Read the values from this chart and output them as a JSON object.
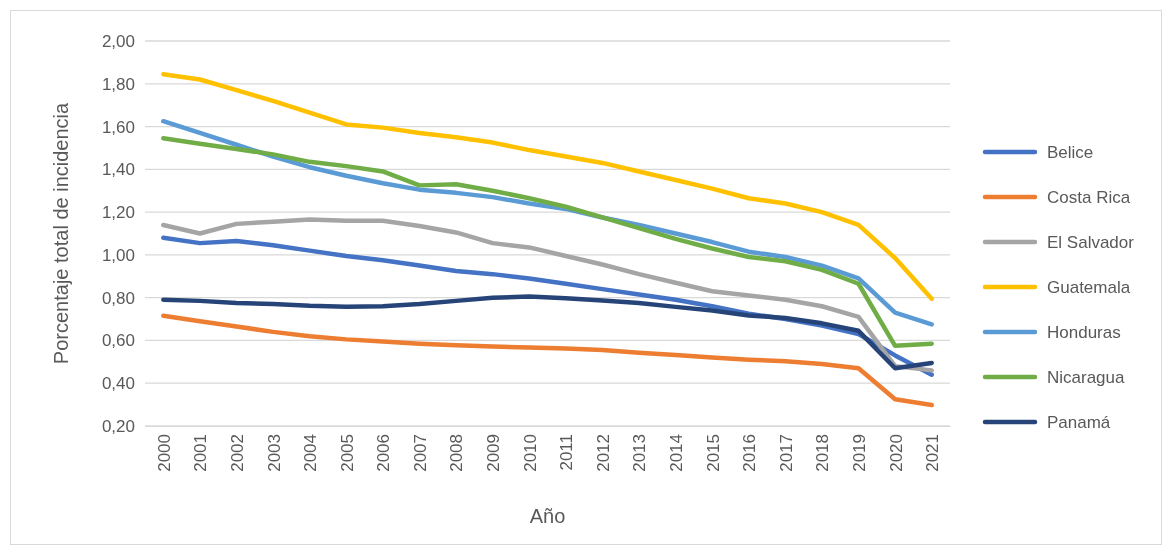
{
  "chart_data": {
    "type": "line",
    "xlabel": "Año",
    "ylabel": "Porcentaje total de incidencia",
    "categories": [
      "2000",
      "2001",
      "2002",
      "2003",
      "2004",
      "2005",
      "2006",
      "2007",
      "2008",
      "2009",
      "2010",
      "2011",
      "2012",
      "2013",
      "2014",
      "2015",
      "2016",
      "2017",
      "2018",
      "2019",
      "2020",
      "2021"
    ],
    "ylim": [
      0.2,
      2.0
    ],
    "yticks": [
      {
        "value": 0.2,
        "label": "0,20"
      },
      {
        "value": 0.4,
        "label": "0,40"
      },
      {
        "value": 0.6,
        "label": "0,60"
      },
      {
        "value": 0.8,
        "label": "0,80"
      },
      {
        "value": 1.0,
        "label": "1,00"
      },
      {
        "value": 1.2,
        "label": "1,20"
      },
      {
        "value": 1.4,
        "label": "1,40"
      },
      {
        "value": 1.6,
        "label": "1,60"
      },
      {
        "value": 1.8,
        "label": "1,80"
      },
      {
        "value": 2.0,
        "label": "2,00"
      }
    ],
    "grid": "y",
    "legend": "right",
    "marker": "none",
    "line_style": "solid",
    "series": [
      {
        "name": "Belice",
        "color": "#4472c4",
        "values": [
          1.08,
          1.055,
          1.065,
          1.045,
          1.02,
          0.995,
          0.975,
          0.95,
          0.925,
          0.91,
          0.89,
          0.865,
          0.84,
          0.815,
          0.79,
          0.76,
          0.725,
          0.7,
          0.67,
          0.63,
          0.53,
          0.44
        ]
      },
      {
        "name": "Costa Rica",
        "color": "#ed7d31",
        "values": [
          0.715,
          0.69,
          0.665,
          0.64,
          0.62,
          0.605,
          0.595,
          0.585,
          0.578,
          0.572,
          0.567,
          0.562,
          0.555,
          0.543,
          0.532,
          0.52,
          0.51,
          0.503,
          0.49,
          0.47,
          0.325,
          0.298
        ]
      },
      {
        "name": "El Salvador",
        "color": "#a5a5a5",
        "values": [
          1.14,
          1.1,
          1.145,
          1.155,
          1.165,
          1.16,
          1.16,
          1.135,
          1.105,
          1.055,
          1.035,
          0.995,
          0.955,
          0.91,
          0.87,
          0.83,
          0.81,
          0.79,
          0.76,
          0.71,
          0.48,
          0.46
        ]
      },
      {
        "name": "Guatemala",
        "color": "#ffc000",
        "values": [
          1.845,
          1.82,
          1.77,
          1.72,
          1.665,
          1.61,
          1.595,
          1.57,
          1.55,
          1.525,
          1.49,
          1.46,
          1.43,
          1.39,
          1.35,
          1.31,
          1.265,
          1.24,
          1.2,
          1.14,
          0.985,
          0.795
        ]
      },
      {
        "name": "Honduras",
        "color": "#5b9bd5",
        "values": [
          1.625,
          1.57,
          1.515,
          1.46,
          1.41,
          1.37,
          1.335,
          1.305,
          1.29,
          1.27,
          1.24,
          1.215,
          1.175,
          1.14,
          1.1,
          1.06,
          1.015,
          0.99,
          0.95,
          0.89,
          0.73,
          0.675
        ]
      },
      {
        "name": "Nicaragua",
        "color": "#70ad47",
        "values": [
          1.545,
          1.52,
          1.495,
          1.47,
          1.435,
          1.415,
          1.39,
          1.325,
          1.33,
          1.3,
          1.265,
          1.225,
          1.175,
          1.125,
          1.075,
          1.03,
          0.99,
          0.97,
          0.93,
          0.865,
          0.575,
          0.585
        ]
      },
      {
        "name": "Panamá",
        "color": "#264478",
        "values": [
          0.79,
          0.785,
          0.775,
          0.77,
          0.762,
          0.758,
          0.76,
          0.77,
          0.785,
          0.8,
          0.805,
          0.797,
          0.787,
          0.775,
          0.757,
          0.74,
          0.717,
          0.705,
          0.68,
          0.645,
          0.47,
          0.495
        ]
      }
    ]
  }
}
